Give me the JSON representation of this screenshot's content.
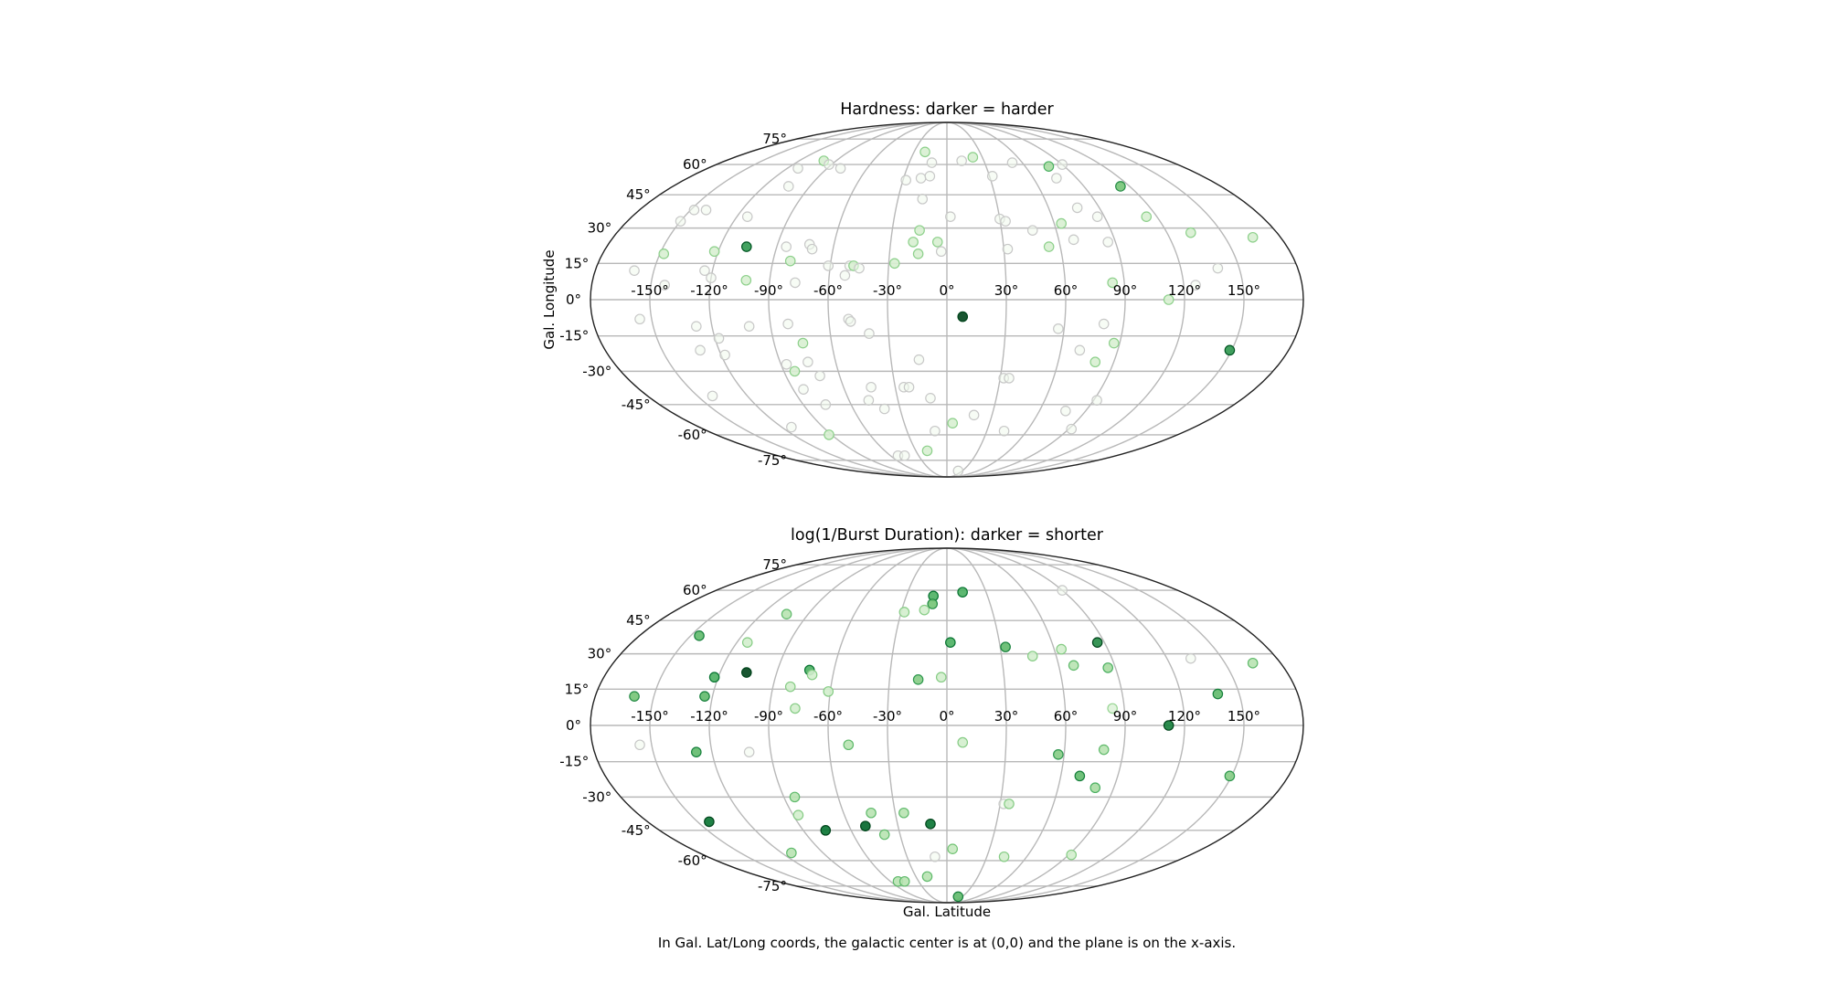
{
  "caption": "In Gal. Lat/Long coords, the galactic center is at (0,0) and the plane is on the x-axis.",
  "colors": {
    "cmap": "Greens",
    "grid": "#b8b8b8",
    "frame": "#222222"
  },
  "chart_data": [
    {
      "type": "scatter",
      "projection": "mollweide",
      "title": "Hardness: darker  = harder",
      "xlabel": "",
      "ylabel": "Gal. Longitude",
      "x_ticks": [
        "-150°",
        "-120°",
        "-90°",
        "-60°",
        "-30°",
        "0°",
        "30°",
        "60°",
        "90°",
        "120°",
        "150°"
      ],
      "y_ticks": [
        "-75°",
        "-60°",
        "-45°",
        "-30°",
        "-15°",
        "0°",
        "15°",
        "30°",
        "45°",
        "60°",
        "75°"
      ],
      "xlim": [
        -180,
        180
      ],
      "ylim": [
        -90,
        90
      ],
      "grid": true,
      "points": [
        {
          "lon": -112,
          "lat": 58,
          "v": 0.05
        },
        {
          "lon": -100,
          "lat": 62,
          "v": 0.18
        },
        {
          "lon": -92,
          "lat": 60,
          "v": 0.05
        },
        {
          "lon": -80,
          "lat": 58,
          "v": 0.05
        },
        {
          "lon": -20,
          "lat": 67,
          "v": 0.18
        },
        {
          "lon": -12,
          "lat": 61,
          "v": 0.05
        },
        {
          "lon": 12,
          "lat": 62,
          "v": 0.05
        },
        {
          "lon": 22,
          "lat": 64,
          "v": 0.18
        },
        {
          "lon": 52,
          "lat": 61,
          "v": 0.05
        },
        {
          "lon": 78,
          "lat": 59,
          "v": 0.35
        },
        {
          "lon": 90,
          "lat": 60,
          "v": 0.05
        },
        {
          "lon": -104,
          "lat": 49,
          "v": 0.05
        },
        {
          "lon": -28,
          "lat": 52,
          "v": 0.05
        },
        {
          "lon": -18,
          "lat": 53,
          "v": 0.05
        },
        {
          "lon": -12,
          "lat": 54,
          "v": 0.05
        },
        {
          "lon": 32,
          "lat": 54,
          "v": 0.05
        },
        {
          "lon": 76,
          "lat": 53,
          "v": 0.05
        },
        {
          "lon": 114,
          "lat": 49,
          "v": 0.5
        },
        {
          "lon": -148,
          "lat": 38,
          "v": 0.05
        },
        {
          "lon": -141,
          "lat": 38,
          "v": 0.05
        },
        {
          "lon": -150,
          "lat": 33,
          "v": 0.05
        },
        {
          "lon": -114,
          "lat": 35,
          "v": 0.05
        },
        {
          "lon": -15,
          "lat": 43,
          "v": 0.05
        },
        {
          "lon": 2,
          "lat": 35,
          "v": 0.05
        },
        {
          "lon": 30,
          "lat": 34,
          "v": 0.05
        },
        {
          "lon": 33,
          "lat": 33,
          "v": 0.05
        },
        {
          "lon": 47,
          "lat": 29,
          "v": 0.05
        },
        {
          "lon": 64,
          "lat": 32,
          "v": 0.18
        },
        {
          "lon": 77,
          "lat": 39,
          "v": 0.05
        },
        {
          "lon": 86,
          "lat": 35,
          "v": 0.05
        },
        {
          "lon": 114,
          "lat": 35,
          "v": 0.18
        },
        {
          "lon": 133,
          "lat": 28,
          "v": 0.18
        },
        {
          "lon": 165,
          "lat": 26,
          "v": 0.18
        },
        {
          "lon": -15,
          "lat": 29,
          "v": 0.18
        },
        {
          "lon": -160,
          "lat": 12,
          "v": 0.05
        },
        {
          "lon": -148,
          "lat": 19,
          "v": 0.18
        },
        {
          "lon": -122,
          "lat": 20,
          "v": 0.18
        },
        {
          "lon": -106,
          "lat": 22,
          "v": 0.7
        },
        {
          "lon": -85,
          "lat": 22,
          "v": 0.05
        },
        {
          "lon": -73,
          "lat": 23,
          "v": 0.05
        },
        {
          "lon": -71,
          "lat": 21,
          "v": 0.05
        },
        {
          "lon": -81,
          "lat": 16,
          "v": 0.18
        },
        {
          "lon": -61,
          "lat": 14,
          "v": 0.05
        },
        {
          "lon": -50,
          "lat": 14,
          "v": 0.05
        },
        {
          "lon": -48,
          "lat": 14,
          "v": 0.18
        },
        {
          "lon": -45,
          "lat": 13,
          "v": 0.05
        },
        {
          "lon": -27,
          "lat": 15,
          "v": 0.18
        },
        {
          "lon": -18,
          "lat": 24,
          "v": 0.18
        },
        {
          "lon": -15,
          "lat": 19,
          "v": 0.18
        },
        {
          "lon": -5,
          "lat": 24,
          "v": 0.18
        },
        {
          "lon": -3,
          "lat": 20,
          "v": 0.05
        },
        {
          "lon": 32,
          "lat": 21,
          "v": 0.05
        },
        {
          "lon": 54,
          "lat": 22,
          "v": 0.18
        },
        {
          "lon": 68,
          "lat": 25,
          "v": 0.05
        },
        {
          "lon": 86,
          "lat": 24,
          "v": 0.05
        },
        {
          "lon": -124,
          "lat": 12,
          "v": 0.05
        },
        {
          "lon": -120,
          "lat": 9,
          "v": 0.05
        },
        {
          "lon": -102,
          "lat": 8,
          "v": 0.18
        },
        {
          "lon": -77,
          "lat": 7,
          "v": 0.05
        },
        {
          "lon": -52,
          "lat": 10,
          "v": 0.05
        },
        {
          "lon": -143,
          "lat": 6,
          "v": 0.05
        },
        {
          "lon": 84,
          "lat": 7,
          "v": 0.18
        },
        {
          "lon": 126,
          "lat": 6,
          "v": 0.05
        },
        {
          "lon": 139,
          "lat": 13,
          "v": 0.05
        },
        {
          "lon": 112,
          "lat": 0,
          "v": 0.18
        },
        {
          "lon": 8,
          "lat": -7,
          "v": 1.0
        },
        {
          "lon": -156,
          "lat": -8,
          "v": 0.05
        },
        {
          "lon": -128,
          "lat": -11,
          "v": 0.05
        },
        {
          "lon": -101,
          "lat": -11,
          "v": 0.05
        },
        {
          "lon": -81,
          "lat": -10,
          "v": 0.05
        },
        {
          "lon": -50,
          "lat": -8,
          "v": 0.05
        },
        {
          "lon": -49,
          "lat": -9,
          "v": 0.05
        },
        {
          "lon": -40,
          "lat": -14,
          "v": 0.05
        },
        {
          "lon": 57,
          "lat": -12,
          "v": 0.05
        },
        {
          "lon": 80,
          "lat": -10,
          "v": 0.05
        },
        {
          "lon": -118,
          "lat": -16,
          "v": 0.05
        },
        {
          "lon": -75,
          "lat": -18,
          "v": 0.18
        },
        {
          "lon": -130,
          "lat": -21,
          "v": 0.05
        },
        {
          "lon": -118,
          "lat": -23,
          "v": 0.05
        },
        {
          "lon": 70,
          "lat": -21,
          "v": 0.05
        },
        {
          "lon": 87,
          "lat": -18,
          "v": 0.18
        },
        {
          "lon": 149,
          "lat": -21,
          "v": 0.7
        },
        {
          "lon": -87,
          "lat": -27,
          "v": 0.05
        },
        {
          "lon": -75,
          "lat": -26,
          "v": 0.05
        },
        {
          "lon": -84,
          "lat": -30,
          "v": 0.18
        },
        {
          "lon": -71,
          "lat": -32,
          "v": 0.05
        },
        {
          "lon": -15,
          "lat": -25,
          "v": 0.05
        },
        {
          "lon": 80,
          "lat": -26,
          "v": 0.18
        },
        {
          "lon": 32,
          "lat": -33,
          "v": 0.05
        },
        {
          "lon": 35,
          "lat": -33,
          "v": 0.05
        },
        {
          "lon": -141,
          "lat": -41,
          "v": 0.05
        },
        {
          "lon": -84,
          "lat": -38,
          "v": 0.05
        },
        {
          "lon": -44,
          "lat": -37,
          "v": 0.05
        },
        {
          "lon": -25,
          "lat": -37,
          "v": 0.05
        },
        {
          "lon": -22,
          "lat": -37,
          "v": 0.05
        },
        {
          "lon": -10,
          "lat": -42,
          "v": 0.05
        },
        {
          "lon": -76,
          "lat": -45,
          "v": 0.05
        },
        {
          "lon": -48,
          "lat": -43,
          "v": 0.05
        },
        {
          "lon": -40,
          "lat": -47,
          "v": 0.05
        },
        {
          "lon": 18,
          "lat": -50,
          "v": 0.05
        },
        {
          "lon": 4,
          "lat": -54,
          "v": 0.18
        },
        {
          "lon": -9,
          "lat": -58,
          "v": 0.05
        },
        {
          "lon": 43,
          "lat": -58,
          "v": 0.05
        },
        {
          "lon": 77,
          "lat": -48,
          "v": 0.05
        },
        {
          "lon": 92,
          "lat": -43,
          "v": 0.05
        },
        {
          "lon": 92,
          "lat": -57,
          "v": 0.05
        },
        {
          "lon": -113,
          "lat": -56,
          "v": 0.05
        },
        {
          "lon": -92,
          "lat": -60,
          "v": 0.18
        },
        {
          "lon": -19,
          "lat": -69,
          "v": 0.18
        },
        {
          "lon": -52,
          "lat": -72,
          "v": 0.05
        },
        {
          "lon": -45,
          "lat": -72,
          "v": 0.05
        },
        {
          "lon": 22,
          "lat": -83,
          "v": 0.05
        }
      ]
    },
    {
      "type": "scatter",
      "projection": "mollweide",
      "title": "log(1/Burst Duration): darker = shorter",
      "xlabel": "Gal. Latitude",
      "ylabel": "",
      "x_ticks": [
        "-150°",
        "-120°",
        "-90°",
        "-60°",
        "-30°",
        "0°",
        "30°",
        "60°",
        "90°",
        "120°",
        "150°"
      ],
      "y_ticks": [
        "-75°",
        "-60°",
        "-45°",
        "-30°",
        "-15°",
        "0°",
        "15°",
        "30°",
        "45°",
        "60°",
        "75°"
      ],
      "xlim": [
        -180,
        180
      ],
      "ylim": [
        -90,
        90
      ],
      "grid": true,
      "points": [
        {
          "lon": -10,
          "lat": 57,
          "v": 0.6
        },
        {
          "lon": 12,
          "lat": 59,
          "v": 0.6
        },
        {
          "lon": 90,
          "lat": 60,
          "v": 0.05
        },
        {
          "lon": -10,
          "lat": 53,
          "v": 0.5
        },
        {
          "lon": -15,
          "lat": 50,
          "v": 0.2
        },
        {
          "lon": -28,
          "lat": 49,
          "v": 0.2
        },
        {
          "lon": -104,
          "lat": 48,
          "v": 0.3
        },
        {
          "lon": -145,
          "lat": 38,
          "v": 0.55
        },
        {
          "lon": -114,
          "lat": 35,
          "v": 0.2
        },
        {
          "lon": 2,
          "lat": 35,
          "v": 0.6
        },
        {
          "lon": 33,
          "lat": 33,
          "v": 0.55
        },
        {
          "lon": 47,
          "lat": 29,
          "v": 0.2
        },
        {
          "lon": 64,
          "lat": 32,
          "v": 0.2
        },
        {
          "lon": 86,
          "lat": 35,
          "v": 0.75
        },
        {
          "lon": 133,
          "lat": 28,
          "v": 0.05
        },
        {
          "lon": 165,
          "lat": 26,
          "v": 0.3
        },
        {
          "lon": 68,
          "lat": 25,
          "v": 0.3
        },
        {
          "lon": 86,
          "lat": 24,
          "v": 0.35
        },
        {
          "lon": -73,
          "lat": 23,
          "v": 0.6
        },
        {
          "lon": -71,
          "lat": 21,
          "v": 0.2
        },
        {
          "lon": -106,
          "lat": 22,
          "v": 1.0
        },
        {
          "lon": -122,
          "lat": 20,
          "v": 0.6
        },
        {
          "lon": -15,
          "lat": 19,
          "v": 0.45
        },
        {
          "lon": -3,
          "lat": 20,
          "v": 0.2
        },
        {
          "lon": -81,
          "lat": 16,
          "v": 0.2
        },
        {
          "lon": -61,
          "lat": 14,
          "v": 0.2
        },
        {
          "lon": -160,
          "lat": 12,
          "v": 0.5
        },
        {
          "lon": -124,
          "lat": 12,
          "v": 0.55
        },
        {
          "lon": 139,
          "lat": 13,
          "v": 0.55
        },
        {
          "lon": -77,
          "lat": 7,
          "v": 0.2
        },
        {
          "lon": 84,
          "lat": 7,
          "v": 0.15
        },
        {
          "lon": 112,
          "lat": 0,
          "v": 0.8
        },
        {
          "lon": -156,
          "lat": -8,
          "v": 0.05
        },
        {
          "lon": -128,
          "lat": -11,
          "v": 0.55
        },
        {
          "lon": -101,
          "lat": -11,
          "v": 0.05
        },
        {
          "lon": -50,
          "lat": -8,
          "v": 0.3
        },
        {
          "lon": 8,
          "lat": -7,
          "v": 0.2
        },
        {
          "lon": 57,
          "lat": -12,
          "v": 0.45
        },
        {
          "lon": 80,
          "lat": -10,
          "v": 0.3
        },
        {
          "lon": 70,
          "lat": -21,
          "v": 0.55
        },
        {
          "lon": 80,
          "lat": -26,
          "v": 0.35
        },
        {
          "lon": 149,
          "lat": -21,
          "v": 0.45
        },
        {
          "lon": -84,
          "lat": -30,
          "v": 0.3
        },
        {
          "lon": 32,
          "lat": -33,
          "v": 0.05
        },
        {
          "lon": 35,
          "lat": -33,
          "v": 0.2
        },
        {
          "lon": -87,
          "lat": -38,
          "v": 0.2
        },
        {
          "lon": -44,
          "lat": -37,
          "v": 0.3
        },
        {
          "lon": -25,
          "lat": -37,
          "v": 0.3
        },
        {
          "lon": -143,
          "lat": -41,
          "v": 0.85
        },
        {
          "lon": -10,
          "lat": -42,
          "v": 0.85
        },
        {
          "lon": -50,
          "lat": -43,
          "v": 0.9
        },
        {
          "lon": -76,
          "lat": -45,
          "v": 0.85
        },
        {
          "lon": -40,
          "lat": -47,
          "v": 0.3
        },
        {
          "lon": 4,
          "lat": -54,
          "v": 0.25
        },
        {
          "lon": -113,
          "lat": -56,
          "v": 0.3
        },
        {
          "lon": -9,
          "lat": -58,
          "v": 0.05
        },
        {
          "lon": 43,
          "lat": -58,
          "v": 0.2
        },
        {
          "lon": 92,
          "lat": -57,
          "v": 0.2
        },
        {
          "lon": -19,
          "lat": -69,
          "v": 0.3
        },
        {
          "lon": -52,
          "lat": -72,
          "v": 0.3
        },
        {
          "lon": -45,
          "lat": -72,
          "v": 0.3
        },
        {
          "lon": 22,
          "lat": -83,
          "v": 0.55
        }
      ]
    }
  ]
}
